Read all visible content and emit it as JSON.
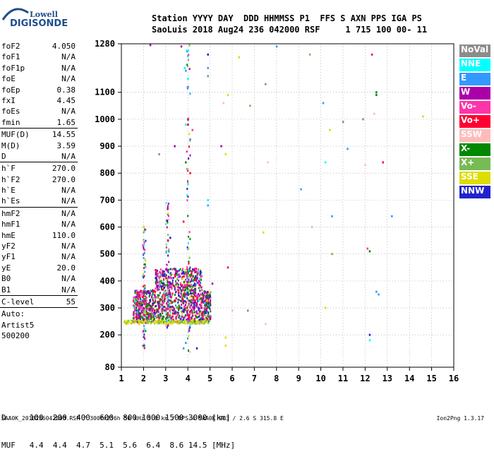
{
  "logo": {
    "line1": "Lowell",
    "line2": "DIGISONDE"
  },
  "header": {
    "line1": "Station YYYY DAY  DDD HHMMSS P1  FFS S AXN PPS IGA PS",
    "line2": "SaoLuis 2018 Aug24 236 042000 RSF     1 715 100 00- 11"
  },
  "params": {
    "group1": [
      {
        "name": "foF2",
        "value": "4.050"
      },
      {
        "name": "foF1",
        "value": "N/A"
      },
      {
        "name": "foF1p",
        "value": "N/A"
      },
      {
        "name": "foE",
        "value": "N/A"
      },
      {
        "name": "foEp",
        "value": "0.38"
      },
      {
        "name": "fxI",
        "value": "4.45"
      },
      {
        "name": "foEs",
        "value": "N/A"
      },
      {
        "name": "fmin",
        "value": "1.65"
      }
    ],
    "group2": [
      {
        "name": "MUF(D)",
        "value": "14.55"
      },
      {
        "name": "M(D)",
        "value": "3.59"
      },
      {
        "name": "D",
        "value": "N/A"
      }
    ],
    "group3": [
      {
        "name": "h`F",
        "value": "270.0"
      },
      {
        "name": "h`F2",
        "value": "270.0"
      },
      {
        "name": "h`E",
        "value": "N/A"
      },
      {
        "name": "h`Es",
        "value": "N/A"
      }
    ],
    "group4": [
      {
        "name": "hmF2",
        "value": "N/A"
      },
      {
        "name": "hmF1",
        "value": "N/A"
      },
      {
        "name": "hmE",
        "value": "110.0"
      },
      {
        "name": "yF2",
        "value": "N/A"
      },
      {
        "name": "yF1",
        "value": "N/A"
      },
      {
        "name": "yE",
        "value": "20.0"
      },
      {
        "name": "B0",
        "value": "N/A"
      },
      {
        "name": "B1",
        "value": "N/A"
      }
    ],
    "group5": [
      {
        "name": "C-level",
        "value": "55"
      }
    ],
    "autoscale": [
      "Auto:",
      "Artist5",
      "500200"
    ]
  },
  "legend": [
    {
      "label": "NoVal",
      "color": "#8c8c8c"
    },
    {
      "label": "NNE",
      "color": "#00ffff"
    },
    {
      "label": "E",
      "color": "#3399ff"
    },
    {
      "label": "W",
      "color": "#aa00aa"
    },
    {
      "label": "Vo-",
      "color": "#ff33aa"
    },
    {
      "label": "Vo+",
      "color": "#ff0033"
    },
    {
      "label": "SSW",
      "color": "#ffbbbb"
    },
    {
      "label": "X-",
      "color": "#008800"
    },
    {
      "label": "X+",
      "color": "#77bb55"
    },
    {
      "label": "SSE",
      "color": "#dddd00"
    },
    {
      "label": "NNW",
      "color": "#2222cc"
    }
  ],
  "muf_table": {
    "d_line": "D     100  200  400  600  800 1000 1500 3000 [km]",
    "muf_line": "MUF   4.4  4.4  4.7  5.1  5.6  6.4  8.6 14.5 [MHz]"
  },
  "footer": {
    "left": "SAA0K_2018236042000.RSF / 300fx256h 50 kHz 5.0 km / DPS-4 SAA0K 903 / 2.6 S 315.8 E",
    "right": "Ion2Png 1.3.17"
  },
  "chart_data": {
    "type": "scatter",
    "title": "",
    "xlabel": "",
    "ylabel": "",
    "xlim": [
      1,
      16
    ],
    "ylim": [
      80,
      1280
    ],
    "x_ticks": [
      1,
      2,
      3,
      4,
      5,
      6,
      7,
      8,
      9,
      10,
      11,
      12,
      13,
      14,
      15,
      16
    ],
    "y_ticks": [
      80,
      200,
      300,
      400,
      500,
      600,
      700,
      800,
      900,
      1000,
      1100,
      1280
    ],
    "grid": "dotted",
    "series": [
      {
        "name": "NNE",
        "color": "#00ffff",
        "points": [
          [
            3.95,
            1255
          ],
          [
            3.85,
            1190
          ],
          [
            4.0,
            1150
          ],
          [
            3.9,
            980
          ],
          [
            10.2,
            840
          ],
          [
            12.2,
            180
          ],
          [
            4.0,
            760
          ],
          [
            4.9,
            700
          ]
        ]
      },
      {
        "name": "E",
        "color": "#3399ff",
        "points": [
          [
            3.9,
            1180
          ],
          [
            4.0,
            1120
          ],
          [
            4.9,
            1190
          ],
          [
            8.0,
            1270
          ],
          [
            9.1,
            740
          ],
          [
            10.1,
            1060
          ],
          [
            10.5,
            640
          ],
          [
            11.2,
            890
          ],
          [
            12.5,
            360
          ],
          [
            12.6,
            350
          ],
          [
            13.2,
            640
          ],
          [
            3.8,
            150
          ],
          [
            3.9,
            170
          ],
          [
            4.9,
            680
          ]
        ]
      },
      {
        "name": "W",
        "color": "#aa00aa",
        "points": [
          [
            2.3,
            1275
          ],
          [
            3.7,
            1270
          ],
          [
            4.0,
            1000
          ],
          [
            3.4,
            900
          ],
          [
            5.5,
            900
          ],
          [
            5.1,
            390
          ],
          [
            3.6,
            420
          ],
          [
            4.5,
            400
          ],
          [
            2.6,
            380
          ],
          [
            3.2,
            350
          ]
        ]
      },
      {
        "name": "Vo-",
        "color": "#ff33aa",
        "points": [
          [
            3.95,
            880
          ],
          [
            12.1,
            520
          ],
          [
            4.2,
            960
          ],
          [
            3.6,
            420
          ],
          [
            2.5,
            340
          ],
          [
            4.6,
            310
          ],
          [
            3.1,
            300
          ]
        ]
      },
      {
        "name": "Vo+",
        "color": "#ff0033",
        "points": [
          [
            12.3,
            1240
          ],
          [
            12.8,
            840
          ],
          [
            4.0,
            980
          ],
          [
            4.1,
            800
          ],
          [
            3.8,
            620
          ],
          [
            3.1,
            550
          ],
          [
            5.8,
            450
          ]
        ]
      },
      {
        "name": "SSW",
        "color": "#ffbbbb",
        "points": [
          [
            7.6,
            840
          ],
          [
            9.6,
            600
          ],
          [
            12.0,
            830
          ],
          [
            12.4,
            1020
          ],
          [
            7.5,
            240
          ],
          [
            6.0,
            290
          ],
          [
            5.6,
            1060
          ]
        ]
      },
      {
        "name": "X-",
        "color": "#008800",
        "points": [
          [
            12.5,
            1100
          ],
          [
            12.2,
            510
          ],
          [
            12.5,
            1090
          ],
          [
            3.9,
            840
          ],
          [
            3.0,
            260
          ],
          [
            2.2,
            280
          ],
          [
            4.3,
            250
          ]
        ]
      },
      {
        "name": "X+",
        "color": "#77bb55",
        "points": [
          [
            6.8,
            1050
          ],
          [
            9.5,
            1240
          ],
          [
            10.5,
            500
          ],
          [
            2.0,
            600
          ],
          [
            4.5,
            280
          ],
          [
            3.5,
            300
          ]
        ]
      },
      {
        "name": "SSE",
        "color": "#dddd00",
        "points": [
          [
            6.3,
            1230
          ],
          [
            5.8,
            1090
          ],
          [
            5.7,
            870
          ],
          [
            7.4,
            580
          ],
          [
            14.6,
            1010
          ],
          [
            5.7,
            190
          ],
          [
            5.7,
            160
          ],
          [
            10.4,
            960
          ],
          [
            10.2,
            300
          ],
          [
            2.0,
            600
          ],
          [
            3.1,
            650
          ],
          [
            1.8,
            240
          ],
          [
            2.4,
            260
          ],
          [
            4.2,
            255
          ],
          [
            4.7,
            250
          ]
        ]
      },
      {
        "name": "NNW",
        "color": "#2222cc",
        "points": [
          [
            4.9,
            1240
          ],
          [
            3.2,
            560
          ],
          [
            12.2,
            200
          ],
          [
            4.4,
            150
          ],
          [
            2.8,
            380
          ],
          [
            3.7,
            300
          ]
        ]
      },
      {
        "name": "NoVal",
        "color": "#8c8c8c",
        "points": [
          [
            4.9,
            1160
          ],
          [
            11.9,
            1000
          ],
          [
            11.0,
            990
          ],
          [
            2.7,
            870
          ],
          [
            7.5,
            1130
          ],
          [
            6.7,
            290
          ]
        ]
      }
    ],
    "trace_note": "dense F-layer echo region between approx 1.5-5.0 MHz and 240-450 km"
  }
}
